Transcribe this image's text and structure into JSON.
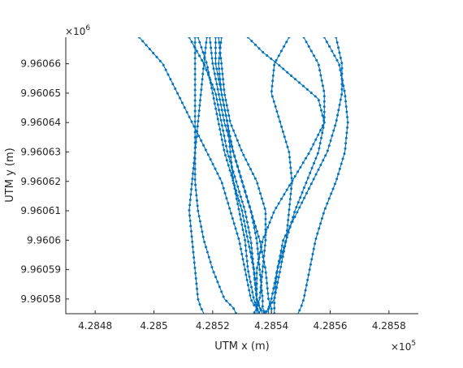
{
  "chart_data": {
    "type": "line",
    "title": "",
    "xlabel": "UTM x (m)",
    "ylabel": "UTM y (m)",
    "x_exponent": "×10",
    "x_exponent_power": "5",
    "y_exponent": "×10",
    "y_exponent_power": "6",
    "xlim": [
      0.42847,
      0.42859
    ],
    "ylim": [
      9.960575,
      9.960669
    ],
    "x_ticks": [
      0.42848,
      0.4285,
      0.42852,
      0.42854,
      0.42856,
      0.42858
    ],
    "x_tick_labels": [
      "4.2848",
      "4.285",
      "4.2852",
      "4.2854",
      "4.2856",
      "4.2858"
    ],
    "y_ticks": [
      9.96058,
      9.96059,
      9.9606,
      9.96061,
      9.96062,
      9.96063,
      9.96064,
      9.96065,
      9.96066
    ],
    "y_tick_labels": [
      "9.96058",
      "9.96059",
      "9.9606",
      "9.96061",
      "9.96062",
      "9.96063",
      "9.96064",
      "9.96065",
      "9.96066"
    ],
    "grid": false,
    "legend": "none",
    "line_color": "#0072BD",
    "marker": "dot",
    "series": [
      {
        "x": [
          0.428495,
          0.428503,
          0.428508,
          0.428513,
          0.428518,
          0.428523,
          0.428526,
          0.428529,
          0.428531,
          0.428533,
          0.428534,
          0.428535,
          0.428536
        ],
        "y": [
          9.960669,
          9.96066,
          9.96065,
          9.96064,
          9.96063,
          9.96062,
          9.96061,
          9.9606,
          9.96059,
          9.96058,
          9.960578,
          9.960577,
          9.960575
        ]
      },
      {
        "x": [
          0.428512,
          0.428517,
          0.428521,
          0.428523,
          0.428525,
          0.428528,
          0.428531,
          0.428533,
          0.428534,
          0.428535,
          0.428536,
          0.428537
        ],
        "y": [
          9.960669,
          9.96066,
          9.96065,
          9.96064,
          9.96063,
          9.96062,
          9.96061,
          9.9606,
          9.96059,
          9.96058,
          9.960577,
          9.960575
        ]
      },
      {
        "x": [
          0.428515,
          0.428518,
          0.42852,
          0.428522,
          0.428524,
          0.428527,
          0.42853,
          0.428532,
          0.428534,
          0.428535,
          0.428536,
          0.428538
        ],
        "y": [
          9.960669,
          9.96066,
          9.96065,
          9.96064,
          9.96063,
          9.96062,
          9.96061,
          9.9606,
          9.96059,
          9.96058,
          9.960577,
          9.960575
        ]
      },
      {
        "x": [
          0.428519,
          0.42852,
          0.428522,
          0.428524,
          0.428527,
          0.42853,
          0.428533,
          0.428536,
          0.428538,
          0.428539,
          0.42854,
          0.42854
        ],
        "y": [
          9.960669,
          9.96066,
          9.96065,
          9.96064,
          9.96063,
          9.96062,
          9.96061,
          9.9606,
          9.96059,
          9.96058,
          9.960577,
          9.960575
        ]
      },
      {
        "x": [
          0.428521,
          0.428521,
          0.428523,
          0.428525,
          0.428526,
          0.428527,
          0.428529,
          0.428531,
          0.428532,
          0.428534,
          0.428535,
          0.428536
        ],
        "y": [
          9.960669,
          9.96066,
          9.96065,
          9.96064,
          9.96063,
          9.96062,
          9.96061,
          9.9606,
          9.96059,
          9.96058,
          9.960577,
          9.960575
        ]
      },
      {
        "x": [
          0.428523,
          0.428522,
          0.428523,
          0.428525,
          0.428527,
          0.42853,
          0.428533,
          0.428535,
          0.428536,
          0.428537,
          0.428537,
          0.428538
        ],
        "y": [
          9.960669,
          9.96066,
          9.96065,
          9.96064,
          9.96063,
          9.96062,
          9.96061,
          9.9606,
          9.96059,
          9.96058,
          9.960577,
          9.960575
        ]
      },
      {
        "x": [
          0.428514,
          0.428514,
          0.428514,
          0.428514,
          0.428514,
          0.428514,
          0.428515,
          0.428517,
          0.42852,
          0.428524,
          0.428527,
          0.428528
        ],
        "y": [
          9.960669,
          9.96066,
          9.96065,
          9.96064,
          9.96063,
          9.96062,
          9.96061,
          9.9606,
          9.96059,
          9.96058,
          9.960577,
          9.960575
        ]
      },
      {
        "x": [
          0.428518,
          0.428517,
          0.428516,
          0.428515,
          0.428514,
          0.428513,
          0.428512,
          0.428513,
          0.428514,
          0.428515,
          0.428516,
          0.428517
        ],
        "y": [
          9.960669,
          9.96066,
          9.96065,
          9.96064,
          9.96063,
          9.96062,
          9.96061,
          9.9606,
          9.96059,
          9.96058,
          9.960577,
          9.960575
        ]
      },
      {
        "x": [
          0.428522,
          0.428523,
          0.428524,
          0.428526,
          0.42853,
          0.428535,
          0.428538,
          0.428538,
          0.428537,
          0.428536,
          0.428535,
          0.428534
        ],
        "y": [
          9.960669,
          9.96066,
          9.96065,
          9.96064,
          9.96063,
          9.96062,
          9.96061,
          9.9606,
          9.96059,
          9.96058,
          9.960577,
          9.960575
        ]
      },
      {
        "x": [
          0.428532,
          0.428537,
          0.428542,
          0.428549,
          0.428556,
          0.428558,
          0.428553,
          0.428547,
          0.428541,
          0.428537,
          0.428535,
          0.428535
        ],
        "y": [
          9.960669,
          9.960664,
          9.96066,
          9.960654,
          9.960648,
          9.96064,
          9.96063,
          9.96062,
          9.96061,
          9.9606,
          9.96059,
          9.960575
        ]
      },
      {
        "x": [
          0.428546,
          0.428541,
          0.42854,
          0.428543,
          0.428546,
          0.428547,
          0.428546,
          0.428545,
          0.428543,
          0.428541,
          0.428539,
          0.428538
        ],
        "y": [
          9.960669,
          9.96066,
          9.96065,
          9.96064,
          9.96063,
          9.96062,
          9.96061,
          9.9606,
          9.96059,
          9.96058,
          9.960577,
          9.960575
        ]
      },
      {
        "x": [
          0.428551,
          0.428556,
          0.428558,
          0.428558,
          0.428556,
          0.428552,
          0.428548,
          0.428545,
          0.428542,
          0.42854,
          0.428539,
          0.428539
        ],
        "y": [
          9.960669,
          9.96066,
          9.96065,
          9.96064,
          9.96063,
          9.96062,
          9.96061,
          9.9606,
          9.96059,
          9.96058,
          9.960577,
          9.960575
        ]
      },
      {
        "x": [
          0.428558,
          0.428563,
          0.428565,
          0.428566,
          0.428565,
          0.428562,
          0.428558,
          0.428555,
          0.428553,
          0.428551,
          0.42855,
          0.428549
        ],
        "y": [
          9.960669,
          9.96066,
          9.96065,
          9.96064,
          9.96063,
          9.96062,
          9.96061,
          9.9606,
          9.96059,
          9.96058,
          9.960577,
          9.960575
        ]
      },
      {
        "x": [
          0.428562,
          0.428564,
          0.428564,
          0.428562,
          0.428559,
          0.428554,
          0.428549,
          0.428544,
          0.428542,
          0.428541,
          0.428541,
          0.428541
        ],
        "y": [
          9.960669,
          9.96066,
          9.96065,
          9.96064,
          9.96063,
          9.96062,
          9.96061,
          9.9606,
          9.96059,
          9.96058,
          9.960577,
          9.960575
        ]
      }
    ]
  }
}
